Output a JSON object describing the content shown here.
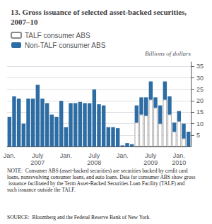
{
  "chart_data": {
    "type": "bar",
    "title": "13. Gross issuance of selected asset-backed securities, 2007–10",
    "ylabel": "Billions of dollars",
    "annotations": [
      "NOTE:  Consumer ABS (asset-backed securities) are securities backed by credit card loans, nonrevolving consumer loans, and auto loans. Data for consumer ABS show gross issuance facilitated by the Term Asset-Backed Securities Loan Facility (TALF) and such issuance outside the TALF.",
      "SOURCE:  Bloomberg and the Federal Reserve Bank of New York."
    ],
    "categories": [
      "Jan.",
      null,
      null,
      null,
      null,
      null,
      "July\n2007",
      null,
      null,
      null,
      null,
      null,
      "Jan.",
      null,
      null,
      null,
      null,
      null,
      "July\n2008",
      null,
      null,
      null,
      null,
      null,
      "Jan.",
      null,
      null,
      null,
      null,
      null,
      "July\n2009",
      null,
      null,
      null,
      null,
      null,
      "Jan.\n2010",
      null,
      null
    ],
    "series": [
      {
        "name": "TALF consumer ABS",
        "color": "white",
        "values": [
          0,
          0,
          0,
          0,
          0,
          0,
          0,
          0,
          0,
          0,
          0,
          0,
          0,
          0,
          0,
          0,
          0,
          0,
          0,
          0,
          0,
          0,
          0,
          0,
          0,
          0,
          0,
          10.5,
          14.0,
          13.5,
          20.5,
          17.0,
          10.0,
          20.5,
          14.0,
          6.5,
          11.0,
          3.5,
          0
        ]
      },
      {
        "name": "Non-TALF consumer ABS",
        "color": "#2e6da4",
        "values": [
          13.0,
          22.0,
          21.0,
          10.0,
          21.0,
          21.0,
          27.0,
          21.0,
          19.0,
          14.0,
          13.0,
          20.0,
          8.5,
          19.0,
          19.0,
          19.5,
          19.0,
          19.0,
          25.0,
          18.5,
          18.0,
          8.5,
          8.5,
          8.0,
          0.5,
          1.5,
          1.0,
          7.5,
          7.5,
          8.0,
          8.0,
          4.5,
          8.0,
          8.0,
          8.0,
          4.0,
          4.5,
          6.5,
          6.5
        ]
      }
    ],
    "stacked": true,
    "ylim": [
      0,
      37
    ],
    "yticks": [
      5,
      10,
      15,
      20,
      25,
      30,
      35
    ],
    "grid": true,
    "legend": "upper left"
  }
}
